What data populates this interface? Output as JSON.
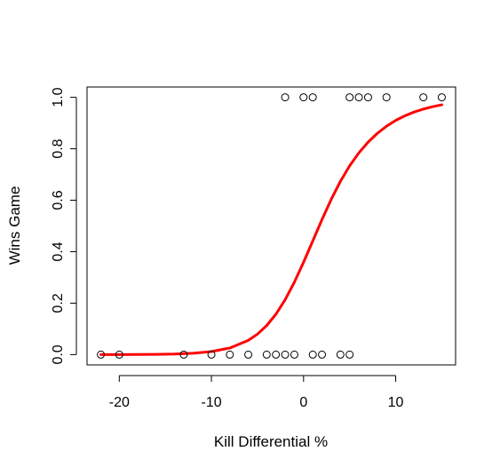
{
  "chart_data": {
    "type": "scatter",
    "title": "",
    "xlabel": "Kill Differential %",
    "ylabel": "Wins Game",
    "xlim": [
      -23.5,
      16.5
    ],
    "ylim": [
      -0.04,
      1.04
    ],
    "x_ticks": [
      -20,
      -10,
      0,
      10
    ],
    "x_tick_labels": [
      "-20",
      "-10",
      "0",
      "10"
    ],
    "y_ticks": [
      0.0,
      0.2,
      0.4,
      0.6,
      0.8,
      1.0
    ],
    "y_tick_labels": [
      "0.0",
      "0.2",
      "0.4",
      "0.6",
      "0.8",
      "1.0"
    ],
    "grid": false,
    "points": {
      "marker": "open-circle",
      "color": "#000000",
      "x": [
        -22,
        -20,
        -13,
        -10,
        -8,
        -6,
        -4,
        -3,
        -2,
        -1,
        1,
        2,
        4,
        5,
        -2,
        0,
        1,
        5,
        6,
        7,
        9,
        13,
        15
      ],
      "y": [
        0,
        0,
        0,
        0,
        0,
        0,
        0,
        0,
        0,
        0,
        0,
        0,
        0,
        0,
        1,
        1,
        1,
        1,
        1,
        1,
        1,
        1,
        1
      ]
    },
    "fit_curve": {
      "type": "logistic",
      "color": "#ff0000",
      "x": [
        -22,
        -20,
        -18,
        -16,
        -14,
        -12,
        -10,
        -8,
        -6,
        -5,
        -4,
        -3,
        -2,
        -1,
        0,
        1,
        2,
        3,
        4,
        5,
        6,
        7,
        8,
        9,
        10,
        11,
        12,
        13,
        14,
        15
      ],
      "y": [
        0.0001,
        0.0002,
        0.0005,
        0.0011,
        0.0024,
        0.0053,
        0.0117,
        0.0257,
        0.0554,
        0.0797,
        0.1131,
        0.1571,
        0.2133,
        0.2813,
        0.3589,
        0.4418,
        0.5248,
        0.6032,
        0.6735,
        0.7338,
        0.784,
        0.8256,
        0.8597,
        0.8876,
        0.9101,
        0.9282,
        0.9427,
        0.9542,
        0.9634,
        0.9708
      ]
    }
  }
}
